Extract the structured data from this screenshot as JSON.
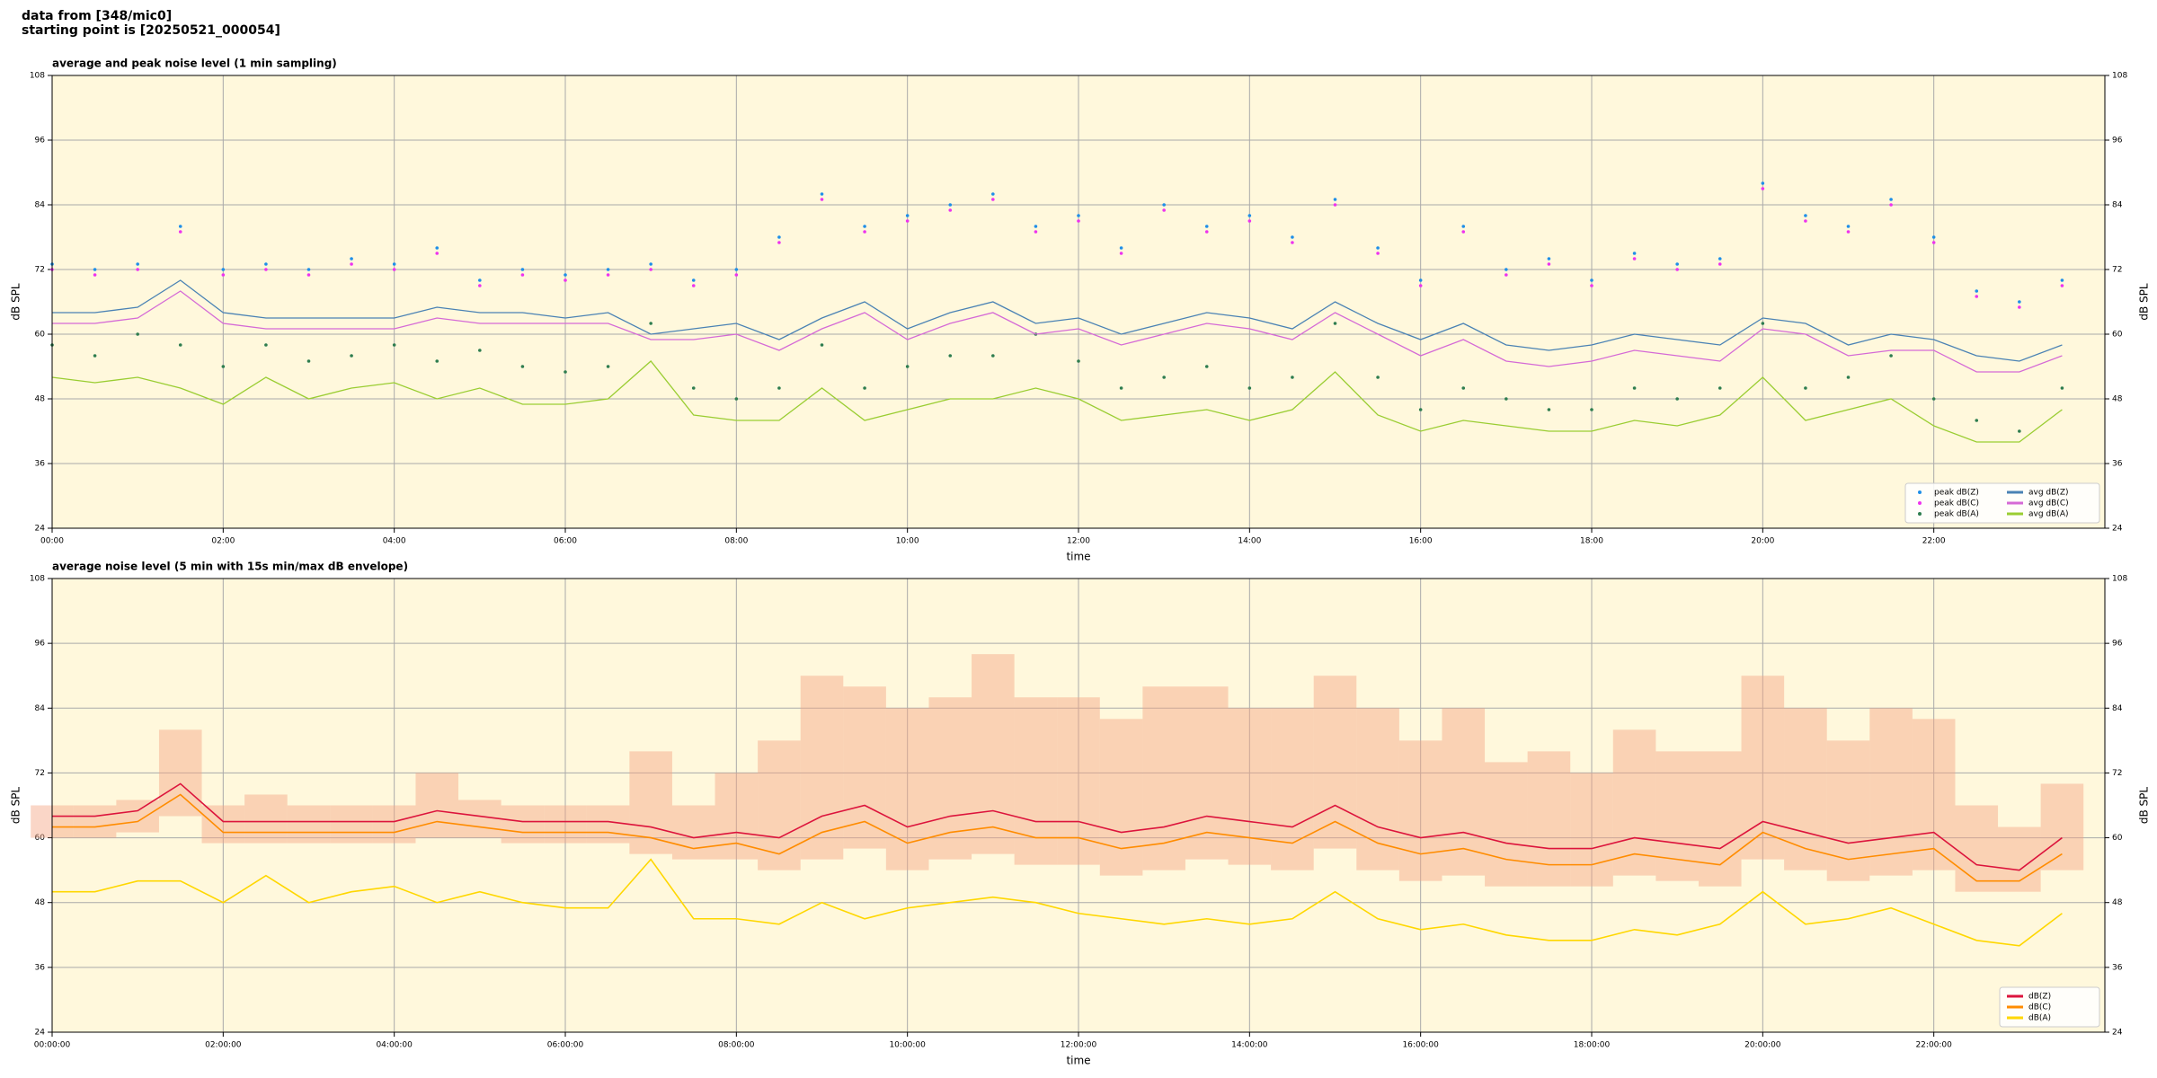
{
  "header": [
    "data from [348/mic0]",
    "starting point is [20250521_000054]"
  ],
  "chart_data": [
    {
      "type": "line",
      "title": "average and peak noise level (1 min sampling)",
      "xlabel": "time",
      "ylabel": "dB SPL",
      "xlim": [
        0,
        24
      ],
      "ylim": [
        24,
        108
      ],
      "xticks": [
        {
          "value": 0,
          "label": "00:00"
        },
        {
          "value": 2,
          "label": "02:00"
        },
        {
          "value": 4,
          "label": "04:00"
        },
        {
          "value": 6,
          "label": "06:00"
        },
        {
          "value": 8,
          "label": "08:00"
        },
        {
          "value": 10,
          "label": "10:00"
        },
        {
          "value": 12,
          "label": "12:00"
        },
        {
          "value": 14,
          "label": "14:00"
        },
        {
          "value": 16,
          "label": "16:00"
        },
        {
          "value": 18,
          "label": "18:00"
        },
        {
          "value": 20,
          "label": "20:00"
        },
        {
          "value": 22,
          "label": "22:00"
        }
      ],
      "yticks": [
        24,
        36,
        48,
        60,
        72,
        84,
        96,
        108
      ],
      "grid": true,
      "legend": "lower right",
      "legend_columns": 2,
      "x": [
        0,
        0.5,
        1,
        1.5,
        2,
        2.5,
        3,
        3.5,
        4,
        4.5,
        5,
        5.5,
        6,
        6.5,
        7,
        7.5,
        8,
        8.5,
        9,
        9.5,
        10,
        10.5,
        11,
        11.5,
        12,
        12.5,
        13,
        13.5,
        14,
        14.5,
        15,
        15.5,
        16,
        16.5,
        17,
        17.5,
        18,
        18.5,
        19,
        19.5,
        20,
        20.5,
        21,
        21.5,
        22,
        22.5,
        23,
        23.5
      ],
      "series": [
        {
          "name": "peak dB(Z)",
          "kind": "scatter",
          "color": "#1f8fe8",
          "values": [
            73,
            72,
            73,
            80,
            72,
            73,
            72,
            74,
            73,
            76,
            70,
            72,
            71,
            72,
            73,
            70,
            72,
            78,
            86,
            80,
            82,
            84,
            86,
            80,
            82,
            76,
            84,
            80,
            82,
            78,
            85,
            76,
            70,
            80,
            72,
            74,
            70,
            75,
            73,
            74,
            88,
            82,
            80,
            85,
            78,
            68,
            66,
            70
          ]
        },
        {
          "name": "peak dB(C)",
          "kind": "scatter",
          "color": "#ee33ee",
          "values": [
            72,
            71,
            72,
            79,
            71,
            72,
            71,
            73,
            72,
            75,
            69,
            71,
            70,
            71,
            72,
            69,
            71,
            77,
            85,
            79,
            81,
            83,
            85,
            79,
            81,
            75,
            83,
            79,
            81,
            77,
            84,
            75,
            69,
            79,
            71,
            73,
            69,
            74,
            72,
            73,
            87,
            81,
            79,
            84,
            77,
            67,
            65,
            69
          ]
        },
        {
          "name": "peak dB(A)",
          "kind": "scatter",
          "color": "#2e7d4f",
          "values": [
            58,
            56,
            60,
            58,
            54,
            58,
            55,
            56,
            58,
            55,
            57,
            54,
            53,
            54,
            62,
            50,
            48,
            50,
            58,
            50,
            54,
            56,
            56,
            60,
            55,
            50,
            52,
            54,
            50,
            52,
            62,
            52,
            46,
            50,
            48,
            46,
            46,
            50,
            48,
            50,
            62,
            50,
            52,
            56,
            48,
            44,
            42,
            50
          ]
        },
        {
          "name": "avg dB(Z)",
          "kind": "line",
          "color": "#4a82b4",
          "values": [
            64,
            64,
            65,
            70,
            64,
            63,
            63,
            63,
            63,
            65,
            64,
            64,
            63,
            64,
            60,
            61,
            62,
            59,
            63,
            66,
            61,
            64,
            66,
            62,
            63,
            60,
            62,
            64,
            63,
            61,
            66,
            62,
            59,
            62,
            58,
            57,
            58,
            60,
            59,
            58,
            63,
            62,
            58,
            60,
            59,
            56,
            55,
            58
          ]
        },
        {
          "name": "avg dB(C)",
          "kind": "line",
          "color": "#d56ad6",
          "values": [
            62,
            62,
            63,
            68,
            62,
            61,
            61,
            61,
            61,
            63,
            62,
            62,
            62,
            62,
            59,
            59,
            60,
            57,
            61,
            64,
            59,
            62,
            64,
            60,
            61,
            58,
            60,
            62,
            61,
            59,
            64,
            60,
            56,
            59,
            55,
            54,
            55,
            57,
            56,
            55,
            61,
            60,
            56,
            57,
            57,
            53,
            53,
            56
          ]
        },
        {
          "name": "avg dB(A)",
          "kind": "line",
          "color": "#9acd32",
          "values": [
            52,
            51,
            52,
            50,
            47,
            52,
            48,
            50,
            51,
            48,
            50,
            47,
            47,
            48,
            55,
            45,
            44,
            44,
            50,
            44,
            46,
            48,
            48,
            50,
            48,
            44,
            45,
            46,
            44,
            46,
            53,
            45,
            42,
            44,
            43,
            42,
            42,
            44,
            43,
            45,
            52,
            44,
            46,
            48,
            43,
            40,
            40,
            46
          ]
        }
      ]
    },
    {
      "type": "line",
      "title": "average noise level (5 min with 15s min/max dB envelope)",
      "xlabel": "time",
      "ylabel": "dB SPL",
      "xlim": [
        0,
        24
      ],
      "ylim": [
        24,
        108
      ],
      "xticks": [
        {
          "value": 0,
          "label": "00:00:00"
        },
        {
          "value": 2,
          "label": "02:00:00"
        },
        {
          "value": 4,
          "label": "04:00:00"
        },
        {
          "value": 6,
          "label": "06:00:00"
        },
        {
          "value": 8,
          "label": "08:00:00"
        },
        {
          "value": 10,
          "label": "10:00:00"
        },
        {
          "value": 12,
          "label": "12:00:00"
        },
        {
          "value": 14,
          "label": "14:00:00"
        },
        {
          "value": 16,
          "label": "16:00:00"
        },
        {
          "value": 18,
          "label": "18:00:00"
        },
        {
          "value": 20,
          "label": "20:00:00"
        },
        {
          "value": 22,
          "label": "22:00:00"
        }
      ],
      "yticks": [
        24,
        36,
        48,
        60,
        72,
        84,
        96,
        108
      ],
      "grid": true,
      "legend": "lower right",
      "legend_columns": 1,
      "x": [
        0,
        0.5,
        1,
        1.5,
        2,
        2.5,
        3,
        3.5,
        4,
        4.5,
        5,
        5.5,
        6,
        6.5,
        7,
        7.5,
        8,
        8.5,
        9,
        9.5,
        10,
        10.5,
        11,
        11.5,
        12,
        12.5,
        13,
        13.5,
        14,
        14.5,
        15,
        15.5,
        16,
        16.5,
        17,
        17.5,
        18,
        18.5,
        19,
        19.5,
        20,
        20.5,
        21,
        21.5,
        22,
        22.5,
        23,
        23.5
      ],
      "envelope": {
        "color": "#f4a582",
        "min": [
          60,
          60,
          61,
          64,
          59,
          59,
          59,
          59,
          59,
          60,
          60,
          59,
          59,
          59,
          57,
          56,
          56,
          54,
          56,
          58,
          54,
          56,
          57,
          55,
          55,
          53,
          54,
          56,
          55,
          54,
          58,
          54,
          52,
          53,
          51,
          51,
          51,
          53,
          52,
          51,
          56,
          54,
          52,
          53,
          54,
          50,
          50,
          54
        ],
        "max": [
          66,
          66,
          67,
          80,
          66,
          68,
          66,
          66,
          66,
          72,
          67,
          66,
          66,
          66,
          76,
          66,
          72,
          78,
          90,
          88,
          84,
          86,
          94,
          86,
          86,
          82,
          88,
          88,
          84,
          84,
          90,
          84,
          78,
          84,
          74,
          76,
          72,
          80,
          76,
          76,
          90,
          84,
          78,
          84,
          82,
          66,
          62,
          70
        ]
      },
      "series": [
        {
          "name": "dB(Z)",
          "kind": "line",
          "color": "#dc143c",
          "values": [
            64,
            64,
            65,
            70,
            63,
            63,
            63,
            63,
            63,
            65,
            64,
            63,
            63,
            63,
            62,
            60,
            61,
            60,
            64,
            66,
            62,
            64,
            65,
            63,
            63,
            61,
            62,
            64,
            63,
            62,
            66,
            62,
            60,
            61,
            59,
            58,
            58,
            60,
            59,
            58,
            63,
            61,
            59,
            60,
            61,
            55,
            54,
            60
          ]
        },
        {
          "name": "dB(C)",
          "kind": "line",
          "color": "#ff8c00",
          "values": [
            62,
            62,
            63,
            68,
            61,
            61,
            61,
            61,
            61,
            63,
            62,
            61,
            61,
            61,
            60,
            58,
            59,
            57,
            61,
            63,
            59,
            61,
            62,
            60,
            60,
            58,
            59,
            61,
            60,
            59,
            63,
            59,
            57,
            58,
            56,
            55,
            55,
            57,
            56,
            55,
            61,
            58,
            56,
            57,
            58,
            52,
            52,
            57
          ]
        },
        {
          "name": "dB(A)",
          "kind": "line",
          "color": "#ffd700",
          "values": [
            50,
            50,
            52,
            52,
            48,
            53,
            48,
            50,
            51,
            48,
            50,
            48,
            47,
            47,
            56,
            45,
            45,
            44,
            48,
            45,
            47,
            48,
            49,
            48,
            46,
            45,
            44,
            45,
            44,
            45,
            50,
            45,
            43,
            44,
            42,
            41,
            41,
            43,
            42,
            44,
            50,
            44,
            45,
            47,
            44,
            41,
            40,
            46
          ]
        }
      ]
    }
  ]
}
